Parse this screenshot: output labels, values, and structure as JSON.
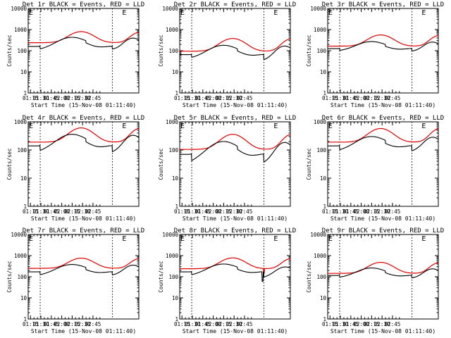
{
  "figure_colors": {
    "events": "#000000",
    "lld": "#e00000"
  },
  "chart_data": [
    {
      "type": "line",
      "title": "Det 1r BLACK = Events, RED = LLD",
      "panel": "1r",
      "ylabel": "Counts/sec",
      "xlabel": "Start Time (15-Nov-08 01:11:40)",
      "ylim": [
        1,
        10000
      ],
      "yscale": "log",
      "ytick_labels": [
        "1",
        "10",
        "100",
        "1000",
        "10000"
      ],
      "xlim_min": [
        11.7,
        171
      ],
      "xtick_labels": [
        "01:15",
        "01:30",
        "01:45",
        "02:00",
        "02:15",
        "02:30",
        "02:45"
      ],
      "vlines_min": [
        29,
        133
      ],
      "markers": [
        "E",
        "E"
      ],
      "markers_min": [
        11.7,
        146
      ],
      "series": [
        {
          "name": "Events",
          "color": "#000000",
          "base": 160,
          "dip": 85,
          "arcs": [
            [
              29,
              75,
              430,
              48
            ],
            [
              133,
              162,
              400,
              28
            ]
          ],
          "steps": [
            [
              29,
              0.72
            ],
            [
              95,
              0.62
            ],
            [
              133,
              0.72
            ]
          ]
        },
        {
          "name": "LLD",
          "color": "#e00000",
          "base": 240,
          "dip": 240,
          "arcs": [
            [
              29,
              88,
              800,
              42
            ],
            [
              133,
              172,
              740,
              30
            ]
          ],
          "steps": []
        }
      ]
    },
    {
      "type": "line",
      "title": "Det 2r BLACK = Events, RED = LLD",
      "panel": "2r",
      "ylabel": "Counts/sec",
      "xlabel": "Start Time (15-Nov-08 01:11:40)",
      "ylim": [
        1,
        10000
      ],
      "yscale": "log",
      "ytick_labels": [
        "1",
        "10",
        "100",
        "1000",
        "10000"
      ],
      "xlim_min": [
        11.7,
        171
      ],
      "xtick_labels": [
        "01:15",
        "01:30",
        "01:45",
        "02:00",
        "02:15",
        "02:30",
        "02:45"
      ],
      "vlines_min": [
        29,
        133
      ],
      "markers": [
        "E",
        "E"
      ],
      "markers_min": [
        11.7,
        146
      ],
      "series": [
        {
          "name": "Events",
          "color": "#000000",
          "base": 65,
          "dip": 40,
          "arcs": [
            [
              29,
              75,
              180,
              48
            ],
            [
              133,
              162,
              170,
              28
            ]
          ],
          "steps": [
            [
              29,
              0.7
            ],
            [
              95,
              0.6
            ],
            [
              133,
              0.55
            ]
          ]
        },
        {
          "name": "LLD",
          "color": "#e00000",
          "base": 95,
          "dip": 95,
          "arcs": [
            [
              29,
              88,
              380,
              42
            ],
            [
              133,
              172,
              360,
              30
            ]
          ],
          "steps": []
        }
      ]
    },
    {
      "type": "line",
      "title": "Det 3r BLACK = Events, RED = LLD",
      "panel": "3r",
      "ylabel": "Counts/sec",
      "xlabel": "Start Time (15-Nov-08 01:11:40)",
      "ylim": [
        1,
        10000
      ],
      "yscale": "log",
      "ytick_labels": [
        "1",
        "10",
        "100",
        "1000",
        "10000"
      ],
      "xlim_min": [
        11.7,
        171
      ],
      "xtick_labels": [
        "01:15",
        "01:30",
        "01:45",
        "02:00",
        "02:15",
        "02:30",
        "02:45"
      ],
      "vlines_min": [
        29,
        133
      ],
      "markers": [
        "E",
        "E"
      ],
      "markers_min": [
        11.7,
        146
      ],
      "series": [
        {
          "name": "Events",
          "color": "#000000",
          "base": 125,
          "dip": 90,
          "arcs": [
            [
              29,
              75,
              270,
              48
            ],
            [
              133,
              162,
              260,
              28
            ]
          ],
          "steps": [
            [
              29,
              0.8
            ],
            [
              95,
              0.7
            ],
            [
              133,
              0.75
            ]
          ]
        },
        {
          "name": "LLD",
          "color": "#e00000",
          "base": 165,
          "dip": 165,
          "arcs": [
            [
              29,
              88,
              560,
              42
            ],
            [
              133,
              172,
              520,
              30
            ]
          ],
          "steps": []
        }
      ]
    },
    {
      "type": "line",
      "title": "Det 4r BLACK = Events, RED = LLD",
      "panel": "4r",
      "ylabel": "Counts/sec",
      "xlabel": "Start Time (15-Nov-08 01:11:40)",
      "ylim": [
        1,
        1000
      ],
      "yscale": "log",
      "ytick_labels": [
        "1",
        "10",
        "100",
        "1000"
      ],
      "xlim_min": [
        11.7,
        171
      ],
      "xtick_labels": [
        "01:15",
        "01:30",
        "01:45",
        "02:00",
        "02:15",
        "02:30",
        "02:45"
      ],
      "vlines_min": [
        29,
        133
      ],
      "markers": [
        "E",
        "E"
      ],
      "markers_min": [
        11.7,
        146
      ],
      "series": [
        {
          "name": "Events",
          "color": "#000000",
          "base": 140,
          "dip": 65,
          "arcs": [
            [
              29,
              75,
              360,
              48
            ],
            [
              133,
              162,
              340,
              28
            ]
          ],
          "steps": [
            [
              29,
              0.65
            ],
            [
              95,
              0.6
            ],
            [
              133,
              0.6
            ]
          ]
        },
        {
          "name": "LLD",
          "color": "#e00000",
          "base": 190,
          "dip": 190,
          "arcs": [
            [
              29,
              88,
              610,
              42
            ],
            [
              133,
              172,
              580,
              30
            ]
          ],
          "steps": []
        }
      ]
    },
    {
      "type": "line",
      "title": "Det 5r BLACK = Events, RED = LLD",
      "panel": "5r",
      "ylabel": "Counts/sec",
      "xlabel": "Start Time (15-Nov-08 01:11:40)",
      "ylim": [
        1,
        1000
      ],
      "yscale": "log",
      "ytick_labels": [
        "1",
        "10",
        "100",
        "1000"
      ],
      "xlim_min": [
        11.7,
        171
      ],
      "xtick_labels": [
        "01:15",
        "01:30",
        "01:45",
        "02:00",
        "02:15",
        "02:30",
        "02:45"
      ],
      "vlines_min": [
        29,
        133
      ],
      "markers": [
        "E",
        "E"
      ],
      "markers_min": [
        11.7,
        146
      ],
      "series": [
        {
          "name": "Events",
          "color": "#000000",
          "base": 70,
          "dip": 38,
          "arcs": [
            [
              29,
              75,
              200,
              48
            ],
            [
              133,
              162,
              190,
              28
            ]
          ],
          "steps": [
            [
              29,
              0.55
            ],
            [
              95,
              0.55
            ],
            [
              133,
              0.5
            ]
          ]
        },
        {
          "name": "LLD",
          "color": "#e00000",
          "base": 105,
          "dip": 105,
          "arcs": [
            [
              29,
              88,
              360,
              42
            ],
            [
              133,
              172,
              350,
              30
            ]
          ],
          "steps": []
        }
      ]
    },
    {
      "type": "line",
      "title": "Det 6r BLACK = Events, RED = LLD",
      "panel": "6r",
      "ylabel": "Counts/sec",
      "xlabel": "Start Time (15-Nov-08 01:11:40)",
      "ylim": [
        1,
        1000
      ],
      "yscale": "log",
      "ytick_labels": [
        "1",
        "10",
        "100",
        "1000"
      ],
      "xlim_min": [
        11.7,
        171
      ],
      "xtick_labels": [
        "01:15",
        "01:30",
        "01:45",
        "02:00",
        "02:15",
        "02:30",
        "02:45"
      ],
      "vlines_min": [
        29,
        133
      ],
      "markers": [
        "E",
        "E"
      ],
      "markers_min": [
        11.7,
        146
      ],
      "series": [
        {
          "name": "Events",
          "color": "#000000",
          "base": 140,
          "dip": 70,
          "arcs": [
            [
              29,
              75,
              300,
              48
            ],
            [
              133,
              162,
              290,
              28
            ]
          ],
          "steps": [
            [
              29,
              0.7
            ],
            [
              95,
              0.65
            ],
            [
              133,
              0.65
            ]
          ]
        },
        {
          "name": "LLD",
          "color": "#e00000",
          "base": 190,
          "dip": 190,
          "arcs": [
            [
              29,
              88,
              580,
              42
            ],
            [
              133,
              172,
              560,
              30
            ]
          ],
          "steps": []
        }
      ]
    },
    {
      "type": "line",
      "title": "Det 7r BLACK = Events, RED = LLD",
      "panel": "7r",
      "ylabel": "Counts/sec",
      "xlabel": "Start Time (15-Nov-08 01:11:40)",
      "ylim": [
        1,
        10000
      ],
      "yscale": "log",
      "ytick_labels": [
        "1",
        "10",
        "100",
        "1000",
        "10000"
      ],
      "xlim_min": [
        11.7,
        171
      ],
      "xtick_labels": [
        "01:15",
        "01:30",
        "01:45",
        "02:00",
        "02:15",
        "02:30",
        "02:45"
      ],
      "vlines_min": [
        29,
        133
      ],
      "markers": [
        "E",
        "E"
      ],
      "markers_min": [
        11.7,
        146
      ],
      "series": [
        {
          "name": "Events",
          "color": "#000000",
          "base": 170,
          "dip": 100,
          "arcs": [
            [
              29,
              75,
              380,
              48
            ],
            [
              133,
              162,
              360,
              28
            ]
          ],
          "steps": [
            [
              29,
              0.7
            ],
            [
              95,
              0.65
            ],
            [
              133,
              0.7
            ]
          ]
        },
        {
          "name": "LLD",
          "color": "#e00000",
          "base": 250,
          "dip": 250,
          "arcs": [
            [
              29,
              88,
              760,
              42
            ],
            [
              133,
              172,
              720,
              30
            ]
          ],
          "steps": []
        }
      ]
    },
    {
      "type": "line",
      "title": "Det 8r BLACK = Events, RED = LLD",
      "panel": "8r",
      "ylabel": "Counts/sec",
      "xlabel": "Start Time (15-Nov-08 01:11:40)",
      "ylim": [
        1,
        10000
      ],
      "yscale": "log",
      "ytick_labels": [
        "1",
        "10",
        "100",
        "1000",
        "10000"
      ],
      "xlim_min": [
        11.7,
        171
      ],
      "xtick_labels": [
        "01:15",
        "01:30",
        "01:45",
        "02:00",
        "02:15",
        "02:30",
        "02:45"
      ],
      "vlines_min": [
        29,
        133
      ],
      "markers": [
        "E",
        "E"
      ],
      "markers_min": [
        11.7,
        146
      ],
      "series": [
        {
          "name": "Events",
          "color": "#000000",
          "base": 170,
          "dip": 100,
          "arcs": [
            [
              29,
              75,
              400,
              48
            ],
            [
              133,
              162,
              300,
              28
            ]
          ],
          "steps": [
            [
              29,
              0.7
            ],
            [
              95,
              0.65
            ],
            [
              133,
              0.55
            ]
          ],
          "spike": [
            131,
            35
          ]
        },
        {
          "name": "LLD",
          "color": "#e00000",
          "base": 240,
          "dip": 240,
          "arcs": [
            [
              29,
              88,
              780,
              42
            ],
            [
              133,
              172,
              720,
              30
            ]
          ],
          "steps": [],
          "spike": [
            133,
            110
          ]
        }
      ]
    },
    {
      "type": "line",
      "title": "Det 9r BLACK = Events, RED = LLD",
      "panel": "9r",
      "ylabel": "Counts/sec",
      "xlabel": "Start Time (15-Nov-08 01:11:40)",
      "ylim": [
        1,
        10000
      ],
      "yscale": "log",
      "ytick_labels": [
        "1",
        "10",
        "100",
        "1000",
        "10000"
      ],
      "xlim_min": [
        11.7,
        171
      ],
      "xtick_labels": [
        "01:15",
        "01:30",
        "01:45",
        "02:00",
        "02:15",
        "02:30",
        "02:45"
      ],
      "vlines_min": [
        29,
        133
      ],
      "markers": [
        "E",
        "E"
      ],
      "markers_min": [
        11.7,
        146
      ],
      "series": [
        {
          "name": "Events",
          "color": "#000000",
          "base": 115,
          "dip": 70,
          "arcs": [
            [
              29,
              75,
              260,
              48
            ],
            [
              133,
              162,
              240,
              28
            ]
          ],
          "steps": [
            [
              29,
              0.8
            ],
            [
              95,
              0.7
            ],
            [
              133,
              0.75
            ]
          ]
        },
        {
          "name": "LLD",
          "color": "#e00000",
          "base": 145,
          "dip": 145,
          "arcs": [
            [
              29,
              88,
              480,
              42
            ],
            [
              133,
              172,
              460,
              30
            ]
          ],
          "steps": []
        }
      ]
    }
  ]
}
